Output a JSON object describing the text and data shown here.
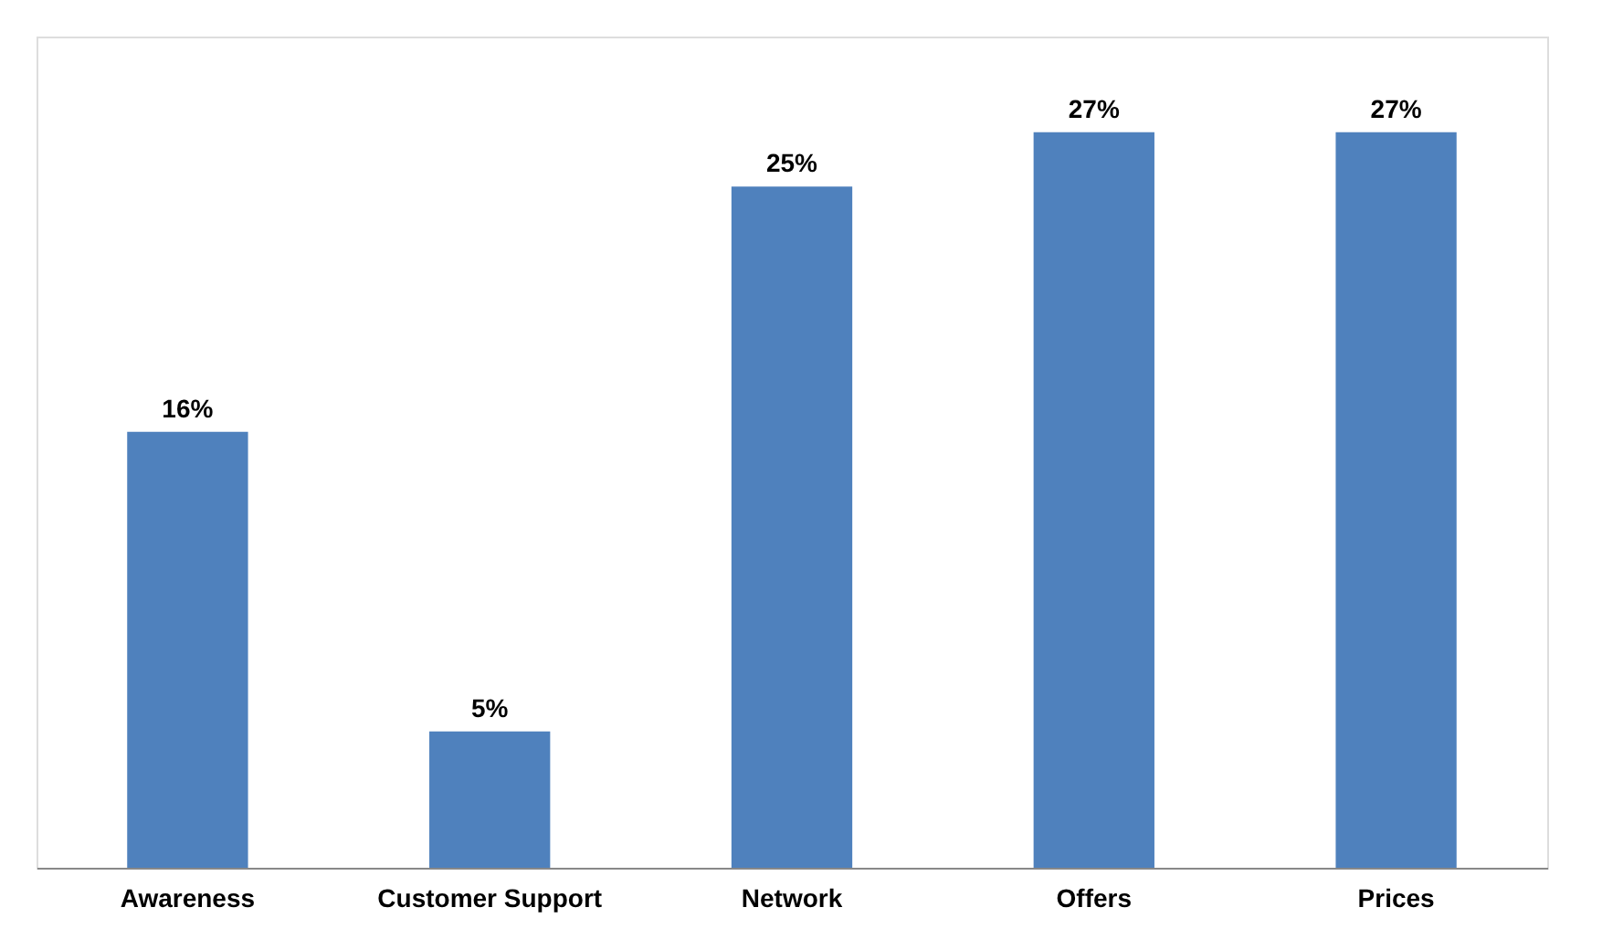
{
  "chart_data": {
    "type": "bar",
    "categories": [
      "Awareness",
      "Customer Support",
      "Network",
      "Offers",
      "Prices"
    ],
    "values": [
      16,
      5,
      25,
      27,
      27
    ],
    "value_labels": [
      "16%",
      "5%",
      "25%",
      "27%",
      "27%"
    ],
    "color": "#4f81bd"
  }
}
